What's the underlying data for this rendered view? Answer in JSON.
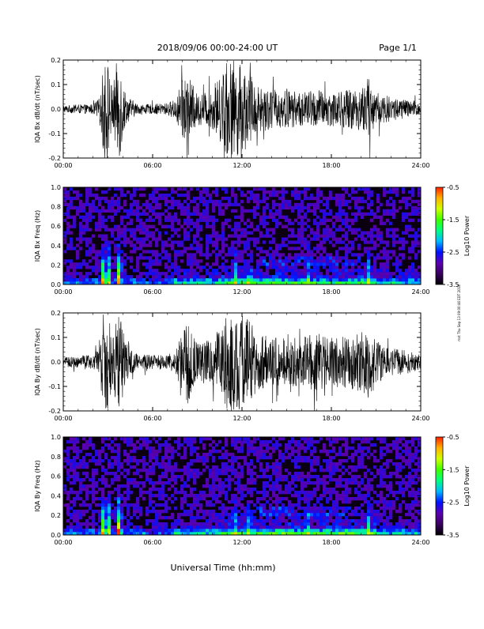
{
  "header": {
    "date_range": "2018/09/06  00:00-24:00 UT",
    "page": "Page 1/1"
  },
  "footer": {
    "x_axis_title": "Universal Time (hh:mm)",
    "side_stamp": "mst Thu Sep 13 09:00:46 EDT 2018"
  },
  "chart_data": [
    {
      "type": "line",
      "ylabel": "IQA Bx dB/dt (nT/sec)",
      "xlim": [
        0,
        24
      ],
      "ylim": [
        -0.2,
        0.2
      ],
      "x_ticks": [
        "00:00",
        "06:00",
        "12:00",
        "18:00",
        "24:00"
      ],
      "y_ticks": [
        "-0.2",
        "-0.1",
        "0.0",
        "0.1",
        "0.2"
      ],
      "envelope": {
        "hours": [
          0,
          1,
          2,
          2.5,
          2.7,
          3.0,
          3.3,
          3.6,
          3.8,
          4.2,
          5,
          6,
          7,
          7.5,
          8,
          8.3,
          9,
          10,
          10.5,
          11,
          11.5,
          12,
          12.5,
          13,
          14,
          15,
          16,
          17,
          18,
          19,
          20,
          20.5,
          21,
          22,
          23,
          24
        ],
        "amplitude": [
          0.015,
          0.018,
          0.02,
          0.05,
          0.2,
          0.2,
          0.08,
          0.2,
          0.2,
          0.06,
          0.02,
          0.02,
          0.025,
          0.04,
          0.12,
          0.15,
          0.06,
          0.08,
          0.13,
          0.2,
          0.2,
          0.18,
          0.15,
          0.1,
          0.08,
          0.08,
          0.07,
          0.08,
          0.07,
          0.08,
          0.09,
          0.13,
          0.07,
          0.05,
          0.04,
          0.03
        ]
      }
    },
    {
      "type": "heatmap",
      "ylabel": "IQA Bx Freq (Hz)",
      "xlim": [
        0,
        24
      ],
      "ylim": [
        0,
        1.0
      ],
      "x_ticks": [
        "00:00",
        "06:00",
        "12:00",
        "18:00",
        "24:00"
      ],
      "y_ticks": [
        "0.0",
        "0.2",
        "0.4",
        "0.6",
        "0.8",
        "1.0"
      ],
      "colorbar": {
        "label": "Log10 Power",
        "range": [
          -3.5,
          -0.5
        ],
        "ticks": [
          "-0.5",
          "-1.5",
          "-2.5",
          "-3.5"
        ]
      },
      "bursts": [
        {
          "hour": 2.7,
          "level": 1.0
        },
        {
          "hour": 3.0,
          "level": 1.0
        },
        {
          "hour": 3.7,
          "level": 0.95
        },
        {
          "hour": 3.8,
          "level": 0.6
        },
        {
          "hour": 11.5,
          "level": 0.45
        },
        {
          "hour": 12.5,
          "level": 0.35
        },
        {
          "hour": 16.5,
          "level": 0.3
        },
        {
          "hour": 20.5,
          "level": 0.35
        }
      ]
    },
    {
      "type": "line",
      "ylabel": "IQA By dB/dt (nT/sec)",
      "xlim": [
        0,
        24
      ],
      "ylim": [
        -0.2,
        0.2
      ],
      "x_ticks": [
        "00:00",
        "06:00",
        "12:00",
        "18:00",
        "24:00"
      ],
      "y_ticks": [
        "-0.2",
        "-0.1",
        "0.0",
        "0.1",
        "0.2"
      ],
      "envelope": {
        "hours": [
          0,
          1,
          2,
          2.5,
          2.7,
          3.0,
          3.3,
          3.6,
          3.8,
          4.2,
          5,
          6,
          7,
          7.5,
          8,
          8.3,
          9,
          10,
          10.5,
          11,
          11.5,
          12,
          12.5,
          13,
          14,
          15,
          16,
          17,
          18,
          19,
          20,
          20.5,
          21,
          22,
          23,
          24
        ],
        "amplitude": [
          0.02,
          0.025,
          0.03,
          0.06,
          0.2,
          0.2,
          0.1,
          0.2,
          0.2,
          0.08,
          0.03,
          0.03,
          0.03,
          0.05,
          0.12,
          0.18,
          0.08,
          0.1,
          0.14,
          0.2,
          0.2,
          0.2,
          0.17,
          0.12,
          0.1,
          0.1,
          0.1,
          0.12,
          0.1,
          0.11,
          0.12,
          0.15,
          0.09,
          0.06,
          0.05,
          0.03
        ]
      }
    },
    {
      "type": "heatmap",
      "ylabel": "IQA By Freq (Hz)",
      "xlim": [
        0,
        24
      ],
      "ylim": [
        0,
        1.0
      ],
      "x_ticks": [
        "00:00",
        "06:00",
        "12:00",
        "18:00",
        "24:00"
      ],
      "y_ticks": [
        "0.0",
        "0.2",
        "0.4",
        "0.6",
        "0.8",
        "1.0"
      ],
      "colorbar": {
        "label": "Log10 Power",
        "range": [
          -3.5,
          -0.5
        ],
        "ticks": [
          "-0.5",
          "-1.5",
          "-2.5",
          "-3.5"
        ]
      },
      "bursts": [
        {
          "hour": 2.7,
          "level": 1.0
        },
        {
          "hour": 3.0,
          "level": 1.0
        },
        {
          "hour": 3.7,
          "level": 0.95
        },
        {
          "hour": 3.8,
          "level": 0.6
        },
        {
          "hour": 11.5,
          "level": 0.45
        },
        {
          "hour": 12.5,
          "level": 0.35
        },
        {
          "hour": 16.5,
          "level": 0.3
        },
        {
          "hour": 20.5,
          "level": 0.35
        }
      ]
    }
  ],
  "colors": {
    "trace": "#000000",
    "spectro_background": "#0a0010",
    "colormap": [
      "#000000",
      "#3a0060",
      "#5a00b0",
      "#0010ff",
      "#00b8ff",
      "#00ff80",
      "#40ff00",
      "#d0ff00",
      "#ffb000",
      "#ff2000"
    ]
  }
}
